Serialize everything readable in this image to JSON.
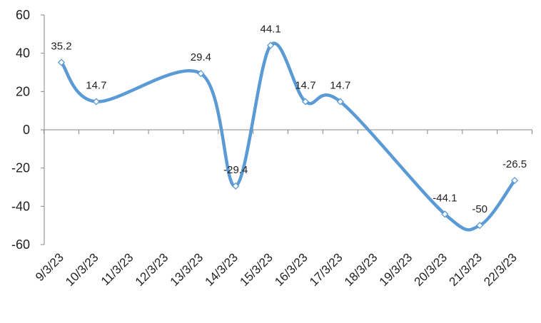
{
  "chart_data": {
    "type": "line",
    "title": "",
    "xlabel": "",
    "ylabel": "",
    "categories": [
      "9/3/23",
      "10/3/23",
      "11/3/23",
      "12/3/23",
      "13/3/23",
      "14/3/23",
      "15/3/23",
      "16/3/23",
      "17/3/23",
      "18/3/23",
      "19/3/23",
      "20/3/23",
      "21/3/23",
      "22/3/23"
    ],
    "series": [
      {
        "values": [
          35.2,
          14.7,
          null,
          null,
          29.4,
          -29.4,
          44.1,
          14.7,
          14.7,
          null,
          null,
          -44.1,
          -50,
          -26.5
        ],
        "labels": [
          "35.2",
          "14.7",
          "",
          "",
          "29.4",
          "-29.4",
          "44.1",
          "14.7",
          "14.7",
          "",
          "",
          "-44.1",
          "-50",
          "-26.5"
        ],
        "color": "#5b9bd5"
      }
    ],
    "ylim": [
      -60,
      60
    ],
    "yticks": [
      "60",
      "40",
      "20",
      "0",
      "-20",
      "-40",
      "-60"
    ],
    "smooth": true,
    "markers": "diamond-open",
    "grid": false,
    "legend": "none"
  }
}
